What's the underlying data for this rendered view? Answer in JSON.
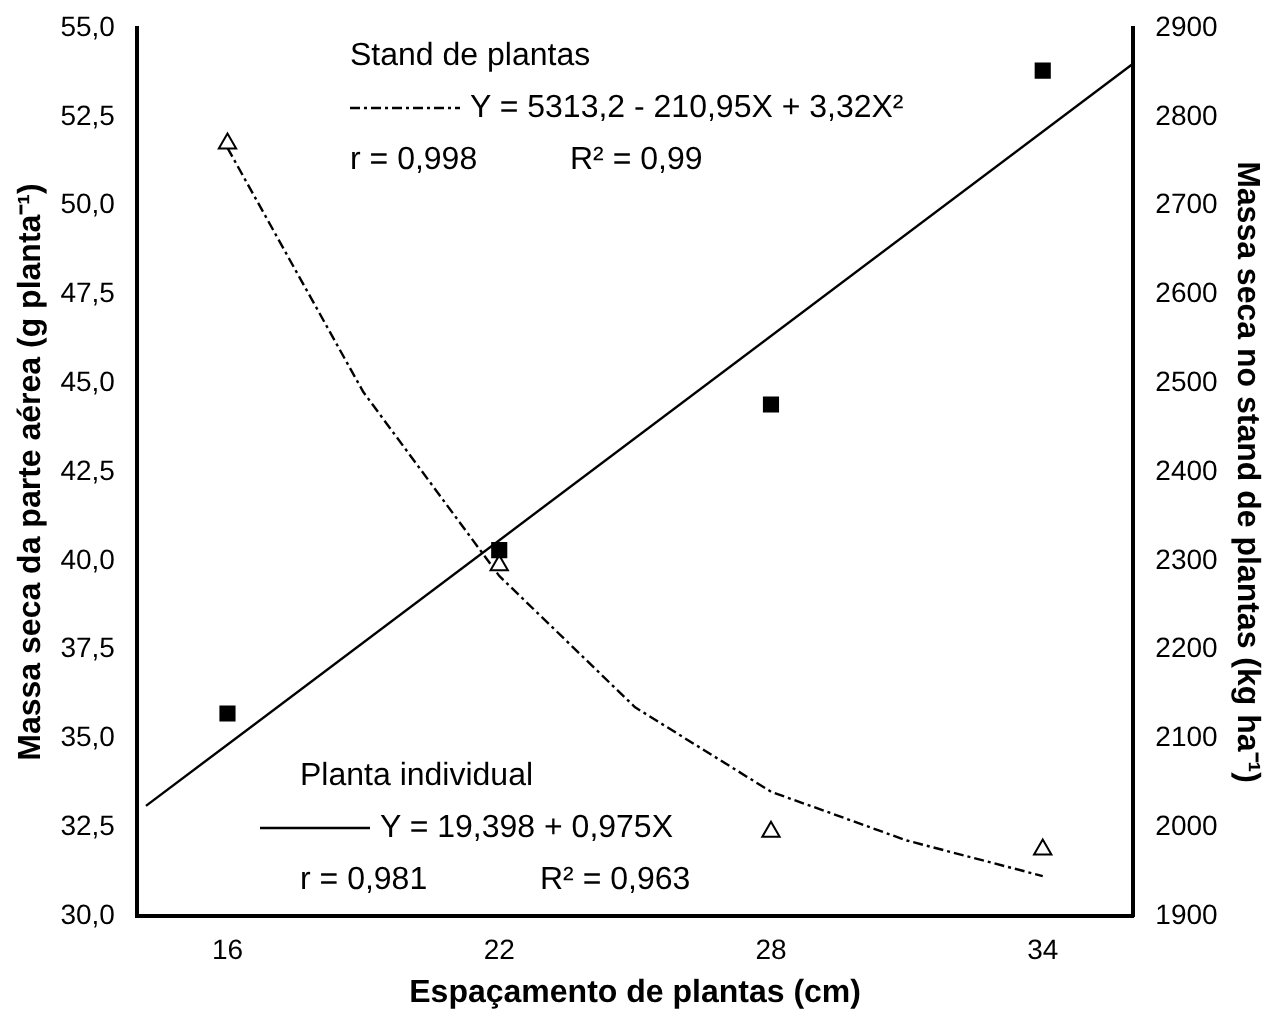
{
  "chart_data": {
    "type": "scatter",
    "xlabel": "Espaçamento de plantas (cm)",
    "ylabel": "Massa seca da parte aérea (g planta⁻¹)",
    "y2label": "Massa seca no stand de plantas (kg ha⁻¹)",
    "xlim": [
      14,
      36
    ],
    "xticks": [
      16,
      22,
      28,
      34
    ],
    "ylim": [
      30,
      55
    ],
    "yticks": [
      {
        "value": 30,
        "label": "30,0"
      },
      {
        "value": 32.5,
        "label": "32,5"
      },
      {
        "value": 35,
        "label": "35,0"
      },
      {
        "value": 37.5,
        "label": "37,5"
      },
      {
        "value": 40,
        "label": "40,0"
      },
      {
        "value": 42.5,
        "label": "42,5"
      },
      {
        "value": 45,
        "label": "45,0"
      },
      {
        "value": 47.5,
        "label": "47,5"
      },
      {
        "value": 50,
        "label": "50,0"
      },
      {
        "value": 52.5,
        "label": "52,5"
      },
      {
        "value": 55,
        "label": "55,0"
      }
    ],
    "y2lim": [
      1900,
      2900
    ],
    "y2ticks": [
      1900,
      2000,
      2100,
      2200,
      2300,
      2400,
      2500,
      2600,
      2700,
      2800,
      2900
    ],
    "grid": false,
    "legend": "top",
    "series": [
      {
        "type": "scatter",
        "marker": "square",
        "color": "#000000",
        "x": [
          16,
          22,
          28,
          34
        ],
        "values": [
          35.7,
          40.3,
          44.4,
          53.8
        ]
      },
      {
        "type": "scatter",
        "marker": "triangle",
        "color": "#000000",
        "axis": "y2",
        "x": [
          16,
          22,
          28,
          34
        ],
        "values": [
          2770,
          2295,
          1995,
          1975
        ]
      },
      {
        "type": "line",
        "name": "Y = 5313,2 - 210,95X + 3,32X²",
        "color": "#000000",
        "axis": "y2",
        "marker": "none",
        "line_style": "dashed",
        "x": [
          16,
          19,
          22,
          25,
          28,
          31,
          34
        ],
        "values": [
          2765,
          2490,
          2283,
          2135,
          2040,
          1985,
          1945
        ]
      },
      {
        "type": "line",
        "name": "Y = 19,398 + 0,975X",
        "color": "#000000",
        "marker": "none",
        "line_style": "solid",
        "x": [
          14.2,
          36
        ],
        "values": [
          33.1,
          54.0
        ]
      }
    ],
    "annotations": [
      "Stand de plantas",
      "r = 0,998",
      "R² = 0,99",
      "Planta individual",
      "r = 0,981",
      "R² = 0,963"
    ]
  }
}
